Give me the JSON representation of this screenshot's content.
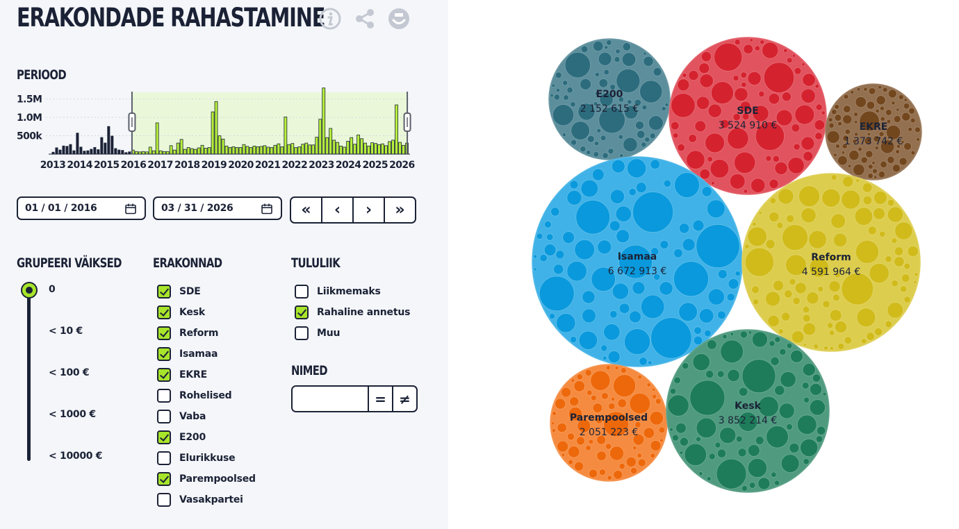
{
  "header": {
    "title": "ERAKONDADE RAHASTAMINE",
    "icons": [
      "info-icon",
      "share-icon",
      "smiley-logo-icon"
    ]
  },
  "period": {
    "heading": "PERIOOD",
    "y_ticks": [
      "1.5M",
      "1.0M",
      "500k"
    ],
    "x_ticks": [
      "2013",
      "2014",
      "2015",
      "2016",
      "2017",
      "2018",
      "2019",
      "2020",
      "2021",
      "2022",
      "2023",
      "2024",
      "2025",
      "2026"
    ],
    "selection_start": 2016,
    "selection_end": 2026.25,
    "axis_start": 2013,
    "axis_end": 2026.3,
    "y_max": 1700000,
    "histogram_values": [
      60000,
      180000,
      120000,
      230000,
      220000,
      270000,
      100000,
      580000,
      200000,
      90000,
      100000,
      140000,
      190000,
      130000,
      460000,
      310000,
      760000,
      500000,
      160000,
      120000,
      110000,
      50000,
      70000,
      110000,
      70000,
      60000,
      70000,
      60000,
      190000,
      90000,
      850000,
      90000,
      70000,
      70000,
      230000,
      110000,
      300000,
      400000,
      130000,
      180000,
      150000,
      130000,
      170000,
      240000,
      160000,
      180000,
      1150000,
      1430000,
      500000,
      410000,
      220000,
      180000,
      200000,
      180000,
      180000,
      260000,
      210000,
      180000,
      220000,
      200000,
      210000,
      230000,
      190000,
      180000,
      240000,
      280000,
      200000,
      1010000,
      260000,
      290000,
      180000,
      200000,
      270000,
      300000,
      250000,
      250000,
      460000,
      950000,
      1800000,
      450000,
      700000,
      380000,
      320000,
      220000,
      190000,
      350000,
      450000,
      270000,
      520000,
      420000,
      300000,
      220000,
      310000,
      290000,
      260000,
      280000,
      230000,
      340000,
      380000,
      1340000,
      320000,
      240000,
      300000
    ],
    "bar_color_selected": "#b6f03a",
    "bar_color_unselected": "#1b2236",
    "selection_color": "#eaf8d9"
  },
  "dates": {
    "start": "01 / 01 / 2016",
    "end": "03 / 31 / 2026"
  },
  "nav_buttons": [
    "«",
    "‹",
    "›",
    "»"
  ],
  "group_small": {
    "heading": "GRUPEERI VÄIKSED",
    "selected": "0",
    "options": [
      "0",
      "< 10 €",
      "< 100 €",
      "< 1000 €",
      "< 10000 €"
    ]
  },
  "parties": {
    "heading": "ERAKONNAD",
    "items": [
      {
        "label": "SDE",
        "checked": true
      },
      {
        "label": "Kesk",
        "checked": true
      },
      {
        "label": "Reform",
        "checked": true
      },
      {
        "label": "Isamaa",
        "checked": true
      },
      {
        "label": "EKRE",
        "checked": true
      },
      {
        "label": "Rohelised",
        "checked": false
      },
      {
        "label": "Vaba",
        "checked": false
      },
      {
        "label": "E200",
        "checked": true
      },
      {
        "label": "Elurikkuse",
        "checked": false
      },
      {
        "label": "Parempoolsed",
        "checked": true
      },
      {
        "label": "Vasakpartei",
        "checked": false
      }
    ]
  },
  "income_type": {
    "heading": "TULULIIK",
    "items": [
      {
        "label": "Liikmemaks",
        "checked": false
      },
      {
        "label": "Rahaline annetus",
        "checked": true
      },
      {
        "label": "Muu",
        "checked": false
      }
    ]
  },
  "names": {
    "heading": "NIMED",
    "value": "",
    "equals_label": "=",
    "not_equals_label": "≠"
  },
  "bubbles": [
    {
      "name": "E200",
      "value": "2 152 615 €",
      "color": "#2e6e80"
    },
    {
      "name": "SDE",
      "value": "3 524 910 €",
      "color": "#d92330"
    },
    {
      "name": "EKRE",
      "value": "1 373 742 €",
      "color": "#75481f"
    },
    {
      "name": "Isamaa",
      "value": "6 672 913 €",
      "color": "#0a9ce0"
    },
    {
      "name": "Reform",
      "value": "4 591 964 €",
      "color": "#d4bf1c"
    },
    {
      "name": "Parempoolsed",
      "value": "2 051 223 €",
      "color": "#f26a0a"
    },
    {
      "name": "Kesk",
      "value": "3 852 214 €",
      "color": "#1f7f5c"
    }
  ]
}
